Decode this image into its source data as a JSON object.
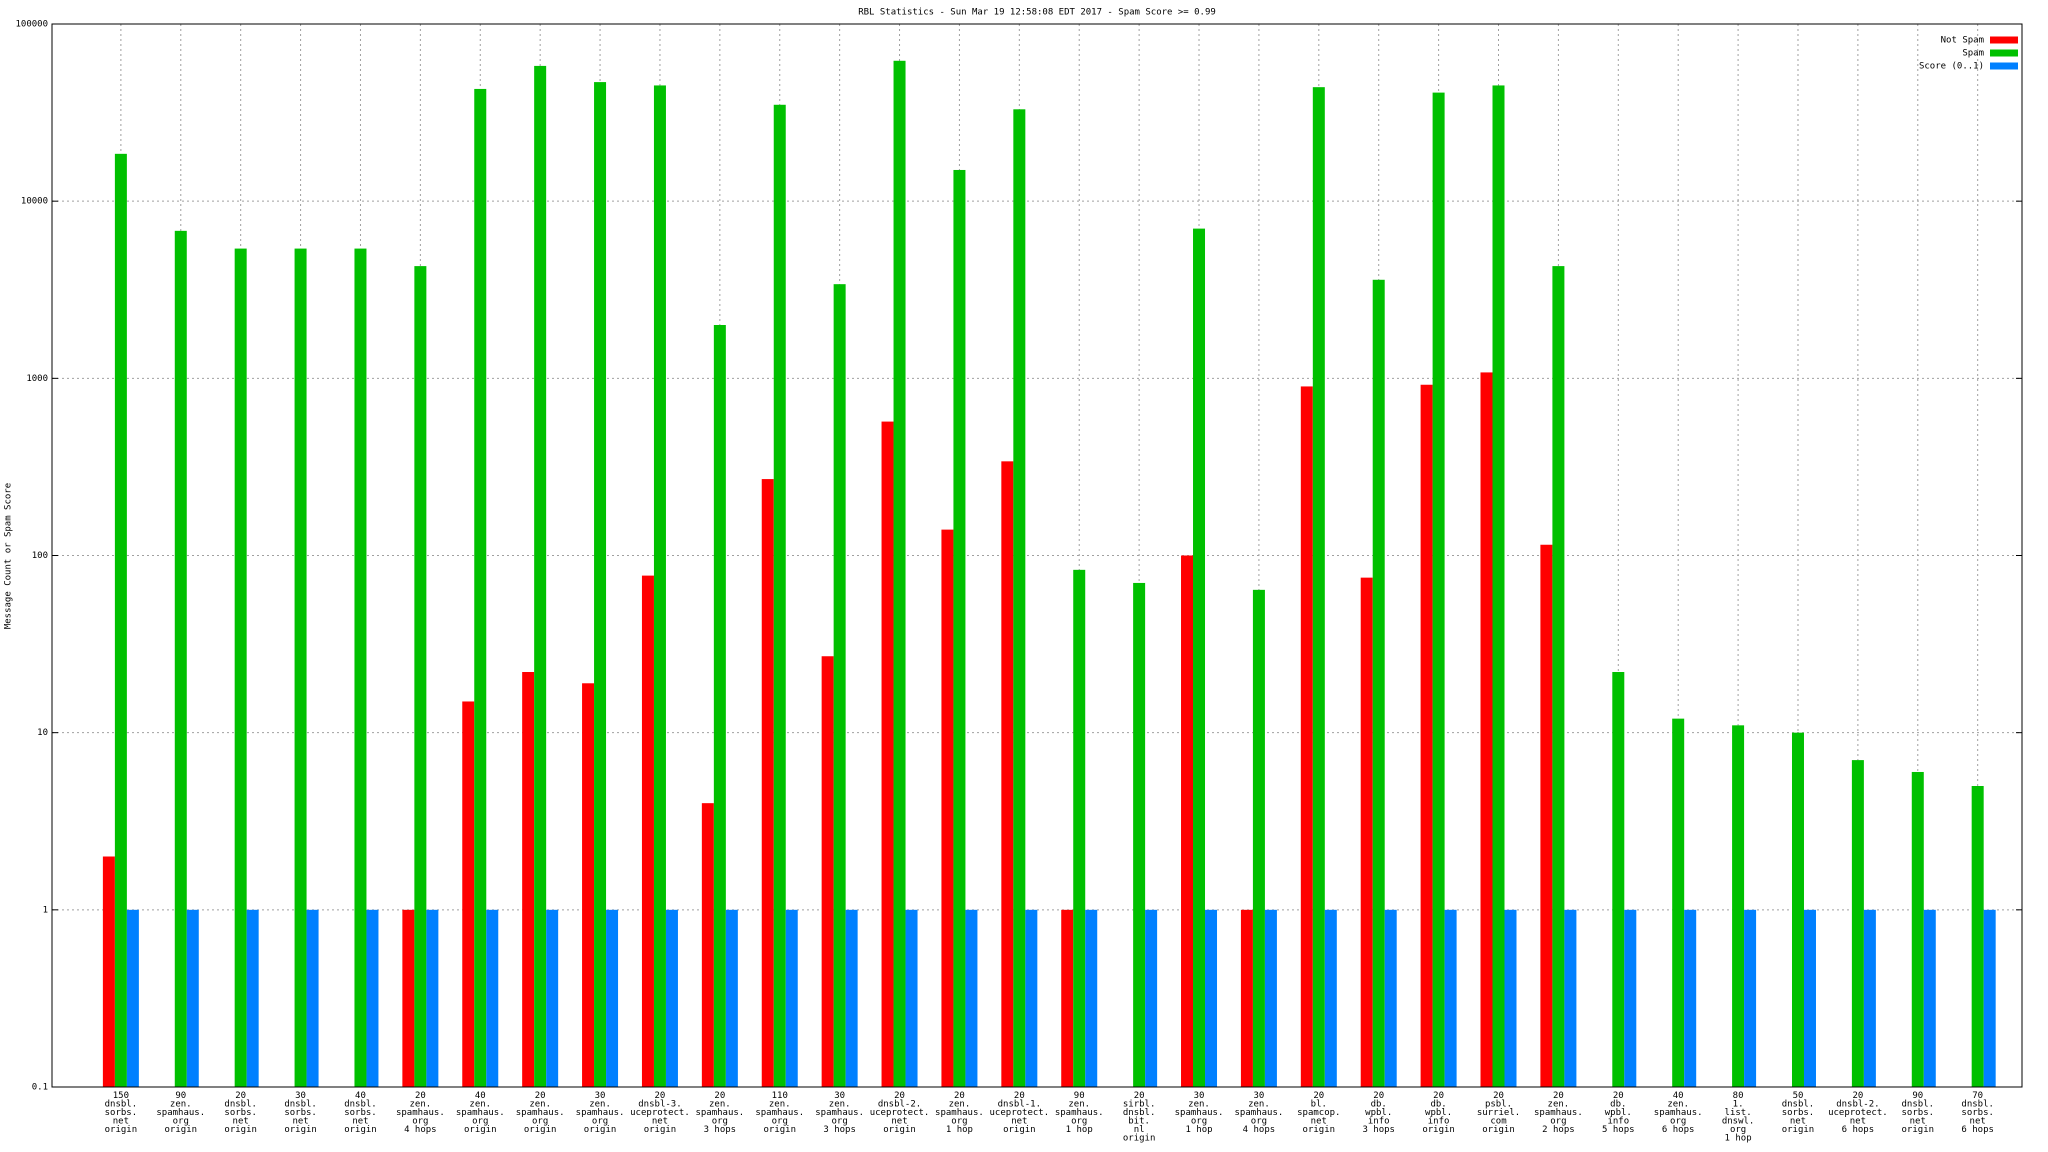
{
  "chart_data": {
    "type": "bar",
    "title": "RBL Statistics - Sun Mar 19 12:58:08 EDT 2017 - Spam Score >= 0.99",
    "y_label": "Message Count or Spam Score",
    "log_scale": true,
    "grid": true,
    "legend": "top-right",
    "ylim": [
      0.1,
      100000
    ],
    "yticks": [
      0.1,
      1,
      10,
      100,
      1000,
      10000,
      100000
    ],
    "categories": [
      "150\ndnsbl.\nsorbs.\nnet\norigin",
      "90\nzen.\nspamhaus.\norg\norigin",
      "20\ndnsbl.\nsorbs.\nnet\norigin",
      "30\ndnsbl.\nsorbs.\nnet\norigin",
      "40\ndnsbl.\nsorbs.\nnet\norigin",
      "20\nzen.\nspamhaus.\norg\n4 hops",
      "40\nzen.\nspamhaus.\norg\norigin",
      "20\nzen.\nspamhaus.\norg\norigin",
      "30\nzen.\nspamhaus.\norg\norigin",
      "20\ndnsbl-3.\nuceprotect.\nnet\norigin",
      "20\nzen.\nspamhaus.\norg\n3 hops",
      "110\nzen.\nspamhaus.\norg\norigin",
      "30\nzen.\nspamhaus.\norg\n3 hops",
      "20\ndnsbl-2.\nuceprotect.\nnet\norigin",
      "20\nzen.\nspamhaus.\norg\n1 hop",
      "20\ndnsbl-1.\nuceprotect.\nnet\norigin",
      "90\nzen.\nspamhaus.\norg\n1 hop",
      "20\nsirbl.\ndnsbl.\nbit.\nnl\norigin",
      "30\nzen.\nspamhaus.\norg\n1 hop",
      "30\nzen.\nspamhaus.\norg\n4 hops",
      "20\nbl.\nspamcop.\nnet\norigin",
      "20\ndb.\nwpbl.\ninfo\n3 hops",
      "20\ndb.\nwpbl.\ninfo\norigin",
      "20\npsbl.\nsurriel.\ncom\norigin",
      "20\nzen.\nspamhaus.\norg\n2 hops",
      "20\ndb.\nwpbl.\ninfo\n5 hops",
      "40\nzen.\nspamhaus.\norg\n6 hops",
      "80\n1.\nlist.\ndnswl.\norg\n1 hop",
      "50\ndnsbl.\nsorbs.\nnet\norigin",
      "20\ndnsbl-2.\nuceprotect.\nnet\n6 hops",
      "90\ndnsbl.\nsorbs.\nnet\norigin",
      "70\ndnsbl.\nsorbs.\nnet\n6 hops"
    ],
    "series": [
      {
        "name": "Not Spam",
        "color": "#ff0000",
        "values": [
          2,
          null,
          null,
          null,
          null,
          1,
          15,
          22,
          19,
          77,
          4,
          270,
          27,
          570,
          140,
          340,
          1,
          null,
          100,
          1,
          900,
          75,
          920,
          1080,
          115,
          null,
          null,
          null,
          null,
          null,
          null,
          null
        ]
      },
      {
        "name": "Spam",
        "color": "#00c000",
        "values": [
          18500,
          6800,
          5400,
          5400,
          5400,
          4300,
          43000,
          58000,
          47000,
          45000,
          2000,
          35000,
          3400,
          62000,
          15000,
          33000,
          83,
          70,
          7000,
          64,
          44000,
          3600,
          41000,
          45000,
          4300,
          22,
          12,
          11,
          10,
          7,
          6,
          5
        ]
      },
      {
        "name": "Score (0..1)",
        "color": "#0080ff",
        "values": [
          1,
          1,
          1,
          1,
          1,
          1,
          1,
          1,
          1,
          1,
          1,
          1,
          1,
          1,
          1,
          1,
          1,
          1,
          1,
          1,
          1,
          1,
          1,
          1,
          1,
          1,
          1,
          1,
          1,
          1,
          1,
          1
        ]
      }
    ]
  }
}
